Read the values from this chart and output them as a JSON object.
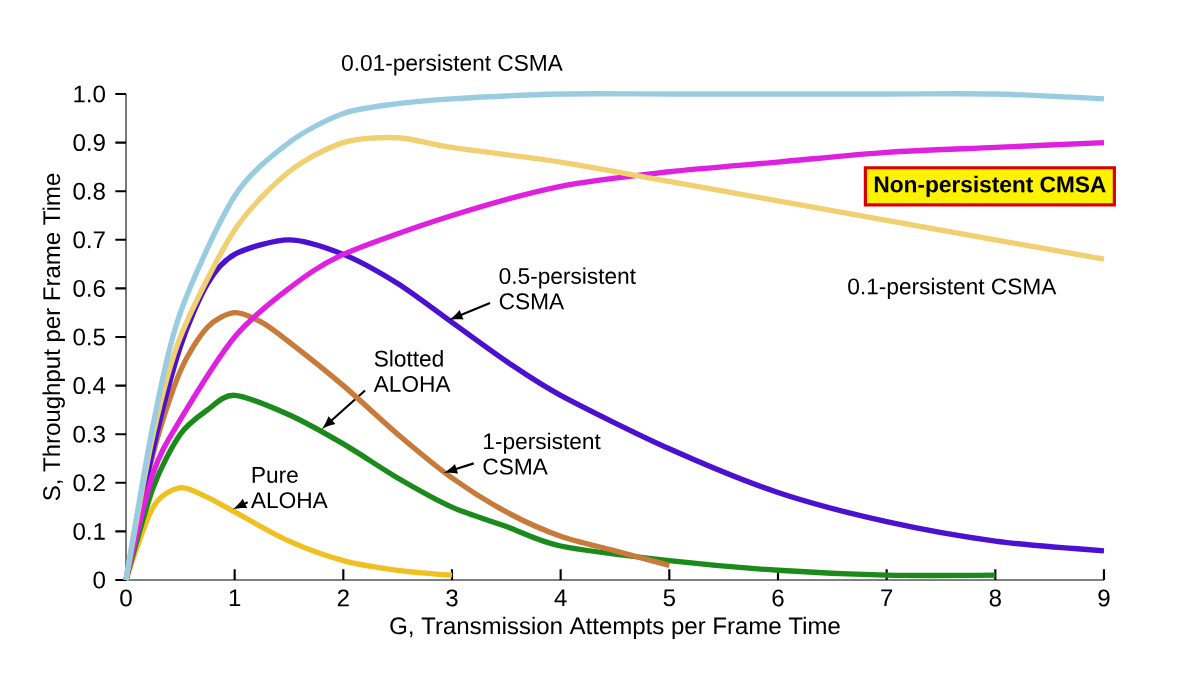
{
  "chart_data": {
    "type": "line",
    "xlabel": "G, Transmission Attempts per Frame Time",
    "ylabel": "S, Throughput per Frame Time",
    "xlim": [
      0,
      9
    ],
    "ylim": [
      0,
      1
    ],
    "xticks": [
      0,
      1,
      2,
      3,
      4,
      5,
      6,
      7,
      8,
      9
    ],
    "yticks": [
      0,
      0.1,
      0.2,
      0.3,
      0.4,
      0.5,
      0.6,
      0.7,
      0.8,
      0.9,
      {
        "value": 1,
        "label": "1.0"
      }
    ],
    "grid": false,
    "legend": false,
    "marker": "none",
    "line_style": "solid",
    "series": [
      {
        "name": "Pure ALOHA",
        "color": "#f0c020",
        "x": [
          0,
          0.25,
          0.5,
          0.75,
          1,
          1.5,
          2,
          2.5,
          3
        ],
        "values": [
          0,
          0.15,
          0.19,
          0.17,
          0.14,
          0.08,
          0.04,
          0.02,
          0.01
        ]
      },
      {
        "name": "Slotted ALOHA",
        "color": "#1a8a1a",
        "x": [
          0,
          0.25,
          0.5,
          0.75,
          1,
          1.5,
          2,
          2.5,
          3,
          3.5,
          4,
          5,
          6,
          7,
          8
        ],
        "values": [
          0,
          0.19,
          0.3,
          0.35,
          0.38,
          0.34,
          0.28,
          0.21,
          0.15,
          0.11,
          0.07,
          0.04,
          0.02,
          0.01,
          0.01
        ]
      },
      {
        "name": "1-persistent CSMA",
        "color": "#c87a3a",
        "x": [
          0,
          0.25,
          0.5,
          0.75,
          1,
          1.25,
          1.5,
          2,
          2.5,
          3,
          3.5,
          4,
          4.5,
          5
        ],
        "values": [
          0,
          0.26,
          0.43,
          0.52,
          0.55,
          0.53,
          0.49,
          0.4,
          0.3,
          0.21,
          0.14,
          0.09,
          0.06,
          0.03
        ]
      },
      {
        "name": "0.5-persistent CSMA",
        "color": "#4b10d0",
        "x": [
          0,
          0.25,
          0.5,
          0.75,
          1,
          1.5,
          2,
          2.5,
          3,
          3.5,
          4,
          5,
          6,
          7,
          8,
          9
        ],
        "values": [
          0,
          0.27,
          0.48,
          0.61,
          0.67,
          0.7,
          0.67,
          0.61,
          0.53,
          0.45,
          0.38,
          0.27,
          0.18,
          0.12,
          0.08,
          0.06
        ]
      },
      {
        "name": "Non-persistent CMSA",
        "color": "#e020e0",
        "x": [
          0,
          0.25,
          0.5,
          1,
          1.5,
          2,
          3,
          4,
          5,
          6,
          7,
          8,
          9
        ],
        "values": [
          0,
          0.22,
          0.33,
          0.5,
          0.6,
          0.67,
          0.75,
          0.81,
          0.84,
          0.86,
          0.88,
          0.89,
          0.9
        ]
      },
      {
        "name": "0.1-persistent CSMA",
        "color": "#f0d070",
        "x": [
          0,
          0.25,
          0.5,
          1,
          1.5,
          2,
          2.5,
          3,
          4,
          5,
          6,
          7,
          8,
          9
        ],
        "values": [
          0,
          0.3,
          0.5,
          0.72,
          0.84,
          0.9,
          0.91,
          0.89,
          0.86,
          0.82,
          0.78,
          0.74,
          0.7,
          0.66
        ]
      },
      {
        "name": "0.01-persistent CSMA",
        "color": "#99cce0",
        "x": [
          0,
          0.25,
          0.5,
          1,
          1.5,
          2,
          2.5,
          3,
          4,
          5,
          6,
          7,
          8,
          9
        ],
        "values": [
          0,
          0.32,
          0.55,
          0.79,
          0.9,
          0.96,
          0.98,
          0.99,
          1,
          1,
          1,
          1,
          1,
          0.99
        ]
      }
    ]
  }
}
